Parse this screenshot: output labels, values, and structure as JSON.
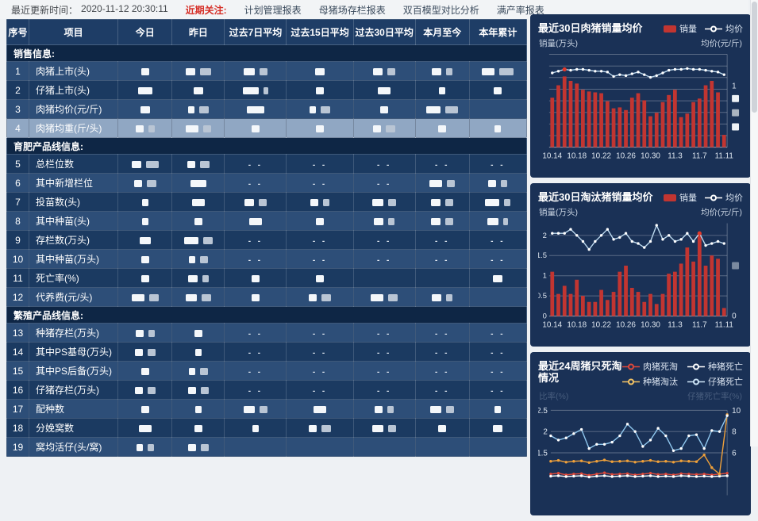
{
  "topbar": {
    "updated_label": "最近更新时间：",
    "updated_value": "2020-11-12 20:30:11",
    "focus_label": "近期关注:",
    "links": [
      "计划管理报表",
      "母猪场存栏报表",
      "双百模型对比分析",
      "满产率报表"
    ]
  },
  "colors": {
    "bar_red": "#c23531",
    "panel_bg": "#1a3156",
    "table_dark": "#1b3a61",
    "table_medium": "#2d4e78",
    "section_bg": "#0e2645",
    "header_bg": "#1e3d66",
    "highlight_row_bg": "#90a7c3",
    "link_red": "#d62f27",
    "line_blue": "#bcd9ef",
    "line_orange": "#f0a13a",
    "highlight_point": "#e0392b"
  },
  "table": {
    "headers": [
      "序号",
      "项目",
      "今日",
      "昨日",
      "过去7日平均",
      "过去15日平均",
      "过去30日平均",
      "本月至今",
      "本年累计"
    ],
    "highlight_row": 4,
    "sections": [
      {
        "title": "销售信息:",
        "rows": [
          {
            "no": 1,
            "label": "肉猪上市(头)",
            "cells": [
              "10",
              "12,14",
              "14,10",
              "12",
              "12,10",
              "12,8",
              "16,18"
            ]
          },
          {
            "no": 2,
            "label": "仔猪上市(头)",
            "cells": [
              "18",
              "12",
              "20,6",
              "10",
              "16",
              "8",
              "10"
            ]
          },
          {
            "no": 3,
            "label": "肉猪均价(元/斤)",
            "cells": [
              "12",
              "8,12",
              "22",
              "8,12",
              "10",
              "18,16",
              ""
            ]
          },
          {
            "no": 4,
            "label": "肉猪均重(斤/头)",
            "cells": [
              "10,8",
              "16,10",
              "10",
              "10",
              "10,12",
              "10",
              "8"
            ]
          }
        ]
      },
      {
        "title": "育肥产品线信息:",
        "rows": [
          {
            "no": 5,
            "label": "总栏位数",
            "cells": [
              "12,16",
              "10,12",
              "d",
              "d",
              "d",
              "d",
              "d"
            ]
          },
          {
            "no": 6,
            "label": "其中新增栏位",
            "cells": [
              "10,12",
              "20",
              "d",
              "d",
              "d",
              "16,10",
              "10,8"
            ]
          },
          {
            "no": 7,
            "label": "投苗数(头)",
            "cells": [
              "8",
              "16",
              "12,10",
              "10,8",
              "14,10",
              "12,10",
              "18,8"
            ]
          },
          {
            "no": 8,
            "label": "其中种苗(头)",
            "cells": [
              "8",
              "10",
              "16",
              "10",
              "12,8",
              "12,10",
              "14,6"
            ]
          },
          {
            "no": 9,
            "label": "存栏数(万头)",
            "cells": [
              "14",
              "18,12",
              "d",
              "d",
              "d",
              "d",
              "d"
            ]
          },
          {
            "no": 10,
            "label": "其中种苗(万头)",
            "cells": [
              "10",
              "8,10",
              "d",
              "d",
              "d",
              "d",
              "d"
            ]
          },
          {
            "no": 11,
            "label": "死亡率(%)",
            "cells": [
              "10",
              "12,8",
              "10",
              "10",
              "",
              "",
              "12"
            ]
          },
          {
            "no": 12,
            "label": "代养费(元/头)",
            "cells": [
              "16,12",
              "14,12",
              "10",
              "10,12",
              "16,12",
              "12,8",
              ""
            ]
          }
        ]
      },
      {
        "title": "繁殖产品线信息:",
        "rows": [
          {
            "no": 13,
            "label": "种猪存栏(万头)",
            "cells": [
              "10,8",
              "10",
              "d",
              "d",
              "d",
              "d",
              "d"
            ]
          },
          {
            "no": 14,
            "label": "其中PS基母(万头)",
            "cells": [
              "10,10",
              "8",
              "d",
              "d",
              "d",
              "d",
              "d"
            ]
          },
          {
            "no": 15,
            "label": "其中PS后备(万头)",
            "cells": [
              "10",
              "8,10",
              "d",
              "d",
              "d",
              "d",
              "d"
            ]
          },
          {
            "no": 16,
            "label": "仔猪存栏(万头)",
            "cells": [
              "10,10",
              "10,10",
              "d",
              "d",
              "d",
              "d",
              "d"
            ]
          },
          {
            "no": 17,
            "label": "配种数",
            "cells": [
              "10",
              "8",
              "14,10",
              "16",
              "10,8",
              "14,10",
              "8"
            ]
          },
          {
            "no": 18,
            "label": "分娩窝数",
            "cells": [
              "16",
              "10",
              "8",
              "10,12",
              "14,10",
              "10",
              "12"
            ]
          },
          {
            "no": 19,
            "label": "窝均活仔(头/窝)",
            "cells": [
              "8,8",
              "10,10",
              "",
              "",
              "",
              "",
              ""
            ]
          }
        ]
      }
    ]
  },
  "chart_data": [
    {
      "id": "pork-sales-price",
      "type": "bar+line",
      "title": "最近30日肉猪销量均价",
      "legend": [
        {
          "label": "销量",
          "type": "bar",
          "color": "#c23531"
        },
        {
          "label": "均价",
          "type": "line",
          "color": "#ffffff"
        }
      ],
      "ylabel_left": "销量(万头)",
      "ylabel_right": "均价(元/斤)",
      "x_ticks": [
        "10.14",
        "10.18",
        "10.22",
        "10.26",
        "10.30",
        "11.3",
        "11.7",
        "11.11"
      ],
      "tick_every": 4,
      "ylim": [
        0,
        105
      ],
      "bar_color": "#c23531",
      "line_color": "#bcd9ef",
      "bars": [
        56,
        70,
        80,
        75,
        72,
        65,
        63,
        62,
        61,
        52,
        44,
        45,
        42,
        56,
        61,
        53,
        35,
        39,
        51,
        59,
        65,
        34,
        38,
        51,
        55,
        70,
        75,
        62,
        14
      ],
      "line": [
        84,
        86,
        88,
        87,
        88,
        88,
        87,
        86,
        86,
        85,
        80,
        82,
        81,
        83,
        85,
        82,
        79,
        81,
        84,
        87,
        88,
        88,
        89,
        88,
        88,
        87,
        86,
        85,
        82
      ],
      "highlight_index": 2,
      "right_marks": [
        {
          "label": "1",
          "v": 69
        },
        {
          "box": "#eef2f6",
          "v": 55
        },
        {
          "box": "#aab4c0",
          "v": 39
        },
        {
          "box": "#eef2f6",
          "v": 23
        }
      ]
    },
    {
      "id": "cull-pig-sales-price",
      "type": "bar+line",
      "title": "最近30日淘汰猪销量均价",
      "legend": [
        {
          "label": "销量",
          "type": "bar",
          "color": "#c23531"
        },
        {
          "label": "均价",
          "type": "line",
          "color": "#ffffff"
        }
      ],
      "ylabel_left": "销量(万头)",
      "ylabel_right": "均价(元/斤)",
      "x_ticks": [
        "10.14",
        "10.18",
        "10.22",
        "10.26",
        "10.30",
        "11.3",
        "11.7",
        "11.11"
      ],
      "tick_every": 4,
      "ylim": [
        0,
        2.3
      ],
      "bar_color": "#c23531",
      "line_color": "#bcd9ef",
      "grid_values": [
        0,
        0.5,
        1,
        1.5,
        2
      ],
      "left_ticks": [
        {
          "label": "2",
          "v": 2
        },
        {
          "label": "1.5",
          "v": 1.5
        },
        {
          "label": "1",
          "v": 1
        },
        {
          "label": "0.5",
          "v": 0.5
        },
        {
          "label": "0",
          "v": 0
        }
      ],
      "bars": [
        1.1,
        0.55,
        0.75,
        0.55,
        0.9,
        0.5,
        0.35,
        0.35,
        0.65,
        0.4,
        0.6,
        1.1,
        1.25,
        0.7,
        0.6,
        0.35,
        0.55,
        0.3,
        0.55,
        1.05,
        1.1,
        1.3,
        1.7,
        1.35,
        2.05,
        1.25,
        1.5,
        1.42,
        0.2
      ],
      "line": [
        2.05,
        2.05,
        2.05,
        2.15,
        2.0,
        1.85,
        1.65,
        1.85,
        2.0,
        2.15,
        1.9,
        1.95,
        2.05,
        1.85,
        1.8,
        1.7,
        1.85,
        2.25,
        1.9,
        2.0,
        1.85,
        1.9,
        2.05,
        1.85,
        2.05,
        1.75,
        1.8,
        1.85,
        1.8
      ],
      "highlight_index": 24,
      "right_marks": [
        {
          "box": "#7b8aa0",
          "v": 1.25
        },
        {
          "label": "0",
          "v": 0
        }
      ]
    },
    {
      "id": "death-cull-24-weeks",
      "type": "line-multi",
      "title": "最近24周猪只死淘情况",
      "legend": [
        {
          "label": "肉猪死淘",
          "type": "line",
          "color": "#e0493a"
        },
        {
          "label": "种猪死亡",
          "type": "line",
          "color": "#ffffff"
        },
        {
          "label": "种猪淘汰",
          "type": "line",
          "color": "#f5c464"
        },
        {
          "label": "仔猪死亡",
          "type": "line",
          "color": "#cfe6f8"
        }
      ],
      "ylabel_left": "比率(%)",
      "ylabel_right": "仔猪死亡率(%)",
      "axis_label_dim": true,
      "grid": [
        {
          "left": "2.5",
          "right": "10",
          "v": 2.5
        },
        {
          "left": "2",
          "right": "8",
          "v": 2
        },
        {
          "left": "1.5",
          "right": "6",
          "v": 1.5
        }
      ],
      "series": [
        {
          "name": "肉猪死淘",
          "color": "#e0493a",
          "axis": "left",
          "values": [
            1.0,
            1.02,
            0.98,
            1.0,
            1.01,
            0.97,
            1.0,
            1.03,
            0.99,
            1.0,
            1.01,
            0.98,
            1.0,
            1.02,
            0.99,
            1.0,
            0.98,
            1.01,
            1.0,
            0.99,
            1.0,
            0.98,
            1.0,
            1.02
          ]
        },
        {
          "name": "种猪死亡",
          "color": "#ffffff",
          "axis": "left",
          "values": [
            0.95,
            0.96,
            0.94,
            0.95,
            0.96,
            0.93,
            0.95,
            0.96,
            0.94,
            0.95,
            0.96,
            0.94,
            0.95,
            0.96,
            0.94,
            0.95,
            0.94,
            0.96,
            0.95,
            0.94,
            0.95,
            0.94,
            0.95,
            0.96
          ]
        },
        {
          "name": "种猪淘汰",
          "color": "#f0a13a",
          "axis": "left",
          "values": [
            1.3,
            1.32,
            1.28,
            1.3,
            1.31,
            1.27,
            1.3,
            1.33,
            1.29,
            1.3,
            1.31,
            1.28,
            1.3,
            1.32,
            1.29,
            1.3,
            1.28,
            1.31,
            1.3,
            1.29,
            1.45,
            1.15,
            1.0,
            2.4
          ]
        },
        {
          "name": "仔猪死亡",
          "color": "#8fc7ee",
          "axis": "right",
          "dot": "#ffffff",
          "values": [
            7.6,
            7.2,
            7.4,
            7.8,
            8.2,
            6.4,
            6.8,
            6.8,
            7.0,
            7.6,
            8.7,
            8.0,
            6.6,
            7.2,
            8.3,
            7.6,
            6.2,
            6.4,
            7.6,
            7.7,
            6.4,
            8.1,
            8.0,
            9.5
          ]
        }
      ]
    }
  ]
}
